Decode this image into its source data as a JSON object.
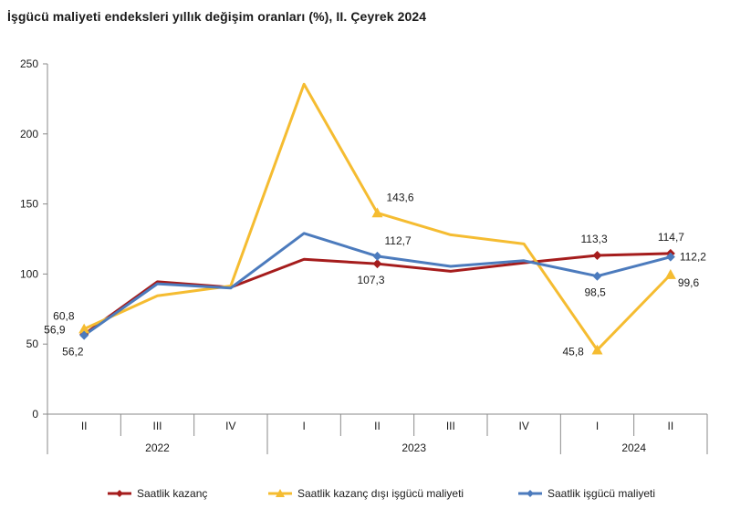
{
  "title": "İşgücü maliyeti endeksleri yıllık değişim oranları (%), II. Çeyrek 2024",
  "chart_data": {
    "type": "line",
    "title": "İşgücü maliyeti endeksleri yıllık değişim oranları (%), II. Çeyrek 2024",
    "ylim": [
      0,
      250
    ],
    "yticks": [
      "0",
      "50",
      "100",
      "150",
      "200",
      "250"
    ],
    "categories": [
      "II",
      "III",
      "IV",
      "I",
      "II",
      "III",
      "IV",
      "I",
      "II"
    ],
    "years": [
      {
        "label": "2022",
        "start": 0,
        "end": 2
      },
      {
        "label": "2023",
        "start": 3,
        "end": 6
      },
      {
        "label": "2024",
        "start": 7,
        "end": 8
      }
    ],
    "grid": false,
    "legend": "bottom",
    "series": [
      {
        "name": "Saatlik kazanç",
        "color": "#a51c1c",
        "marker": "diamond",
        "values": [
          56.9,
          94.5,
          90.5,
          110.5,
          107.3,
          102.0,
          108.0,
          113.3,
          114.7
        ]
      },
      {
        "name": "Saatlik kazanç dışı işgücü maliyeti",
        "color": "#f5bc31",
        "marker": "triangle",
        "values": [
          60.8,
          84.5,
          91.5,
          235.5,
          143.6,
          128.0,
          121.5,
          45.8,
          99.6
        ]
      },
      {
        "name": "Saatlik işgücü maliyeti",
        "color": "#4c7bbd",
        "marker": "diamond",
        "values": [
          56.2,
          93.0,
          90.0,
          129.0,
          112.7,
          105.5,
          109.5,
          98.5,
          112.2
        ]
      }
    ],
    "data_labels": [
      {
        "text": "56,9",
        "series": 0,
        "index": 0
      },
      {
        "text": "107,3",
        "series": 0,
        "index": 4
      },
      {
        "text": "113,3",
        "series": 0,
        "index": 7
      },
      {
        "text": "114,7",
        "series": 0,
        "index": 8
      },
      {
        "text": "60,8",
        "series": 1,
        "index": 0
      },
      {
        "text": "143,6",
        "series": 1,
        "index": 4
      },
      {
        "text": "45,8",
        "series": 1,
        "index": 7
      },
      {
        "text": "99,6",
        "series": 1,
        "index": 8
      },
      {
        "text": "56,2",
        "series": 2,
        "index": 0
      },
      {
        "text": "112,7",
        "series": 2,
        "index": 4
      },
      {
        "text": "98,5",
        "series": 2,
        "index": 7
      },
      {
        "text": "112,2",
        "series": 2,
        "index": 8
      }
    ]
  }
}
